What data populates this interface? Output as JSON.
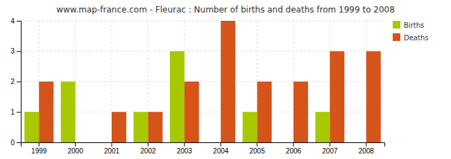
{
  "chart_data": {
    "type": "bar",
    "title": "www.map-france.com - Fleurac : Number of births and deaths from 1999 to 2008",
    "categories": [
      "1999",
      "2000",
      "2001",
      "2002",
      "2003",
      "2004",
      "2005",
      "2006",
      "2007",
      "2008"
    ],
    "series": [
      {
        "name": "Births",
        "color": "#a8c800",
        "values": [
          1,
          2,
          0,
          1,
          3,
          0,
          1,
          0,
          1,
          0
        ]
      },
      {
        "name": "Deaths",
        "color": "#d4541a",
        "values": [
          2,
          0,
          1,
          1,
          2,
          4,
          2,
          2,
          3,
          3
        ]
      }
    ],
    "ylim": [
      0,
      4
    ],
    "yticks": [
      0,
      1,
      2,
      3,
      4
    ],
    "grid": true,
    "legend": "upper right"
  }
}
